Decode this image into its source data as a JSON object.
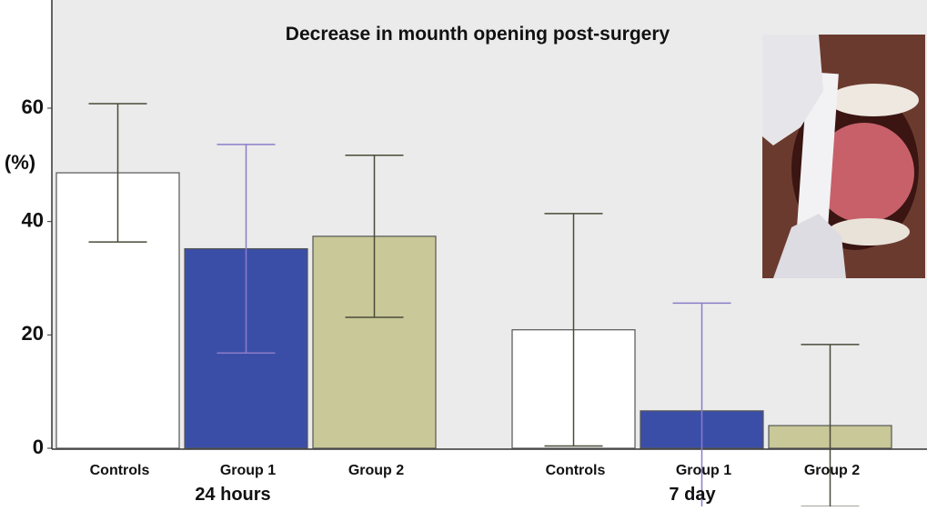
{
  "chart_data": {
    "type": "bar",
    "title": "Decrease in mounth opening post-surgery",
    "y_label": "(%)",
    "ylim": [
      0,
      77
    ],
    "yticks": [
      0,
      20,
      40,
      60
    ],
    "colors": [
      "#ffffff",
      "#3a4ea8",
      "#c8c898"
    ],
    "groups": [
      {
        "label": "24 hours",
        "categories": [
          "Controls",
          "Group 1",
          "Group 2"
        ],
        "values": [
          48.6,
          35.2,
          37.4
        ],
        "errors": [
          12.2,
          18.4,
          14.3
        ]
      },
      {
        "label": "7 day",
        "categories": [
          "Controls",
          "Group 1",
          "Group 2"
        ],
        "values": [
          20.9,
          6.6,
          4.0
        ],
        "errors": [
          20.5,
          19.0,
          14.3
        ]
      }
    ]
  }
}
